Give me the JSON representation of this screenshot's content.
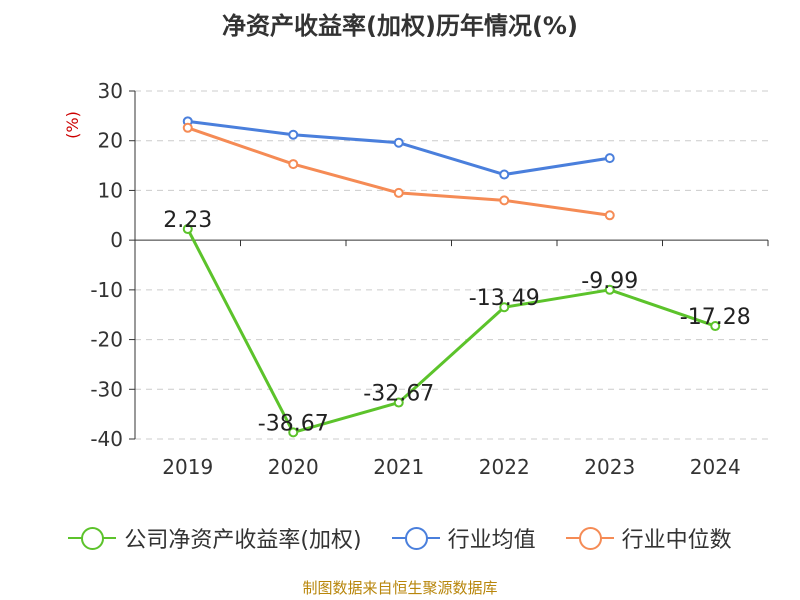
{
  "title": "净资产收益率(加权)历年情况(%)",
  "source": "制图数据来自恒生聚源数据库",
  "colors": {
    "company": "#5cc32b",
    "industry_avg": "#4a7fdc",
    "industry_median": "#f58b55",
    "unit": "#cc0000",
    "grid": "#cccccc",
    "axis": "#333333"
  },
  "chart_data": {
    "type": "line",
    "categories": [
      "2019",
      "2020",
      "2021",
      "2022",
      "2023",
      "2024"
    ],
    "ylabel": "(%)",
    "ylim": [
      -40,
      30
    ],
    "yticks": [
      30,
      20,
      10,
      0,
      -10,
      -20,
      -30,
      -40
    ],
    "grid": "horizontal dashed",
    "legend_position": "bottom",
    "series": [
      {
        "name": "公司净资产收益率(加权)",
        "color_key": "company",
        "values": [
          2.23,
          -38.67,
          -32.67,
          -13.49,
          -9.99,
          -17.28
        ],
        "labels": [
          "2.23",
          "-38.67",
          "-32.67",
          "-13.49",
          "-9.99",
          "-17.28"
        ]
      },
      {
        "name": "行业均值",
        "color_key": "industry_avg",
        "values": [
          23.9,
          21.2,
          19.6,
          13.2,
          16.5,
          null
        ]
      },
      {
        "name": "行业中位数",
        "color_key": "industry_median",
        "values": [
          22.6,
          15.3,
          9.5,
          8.0,
          5.0,
          null
        ]
      }
    ]
  }
}
